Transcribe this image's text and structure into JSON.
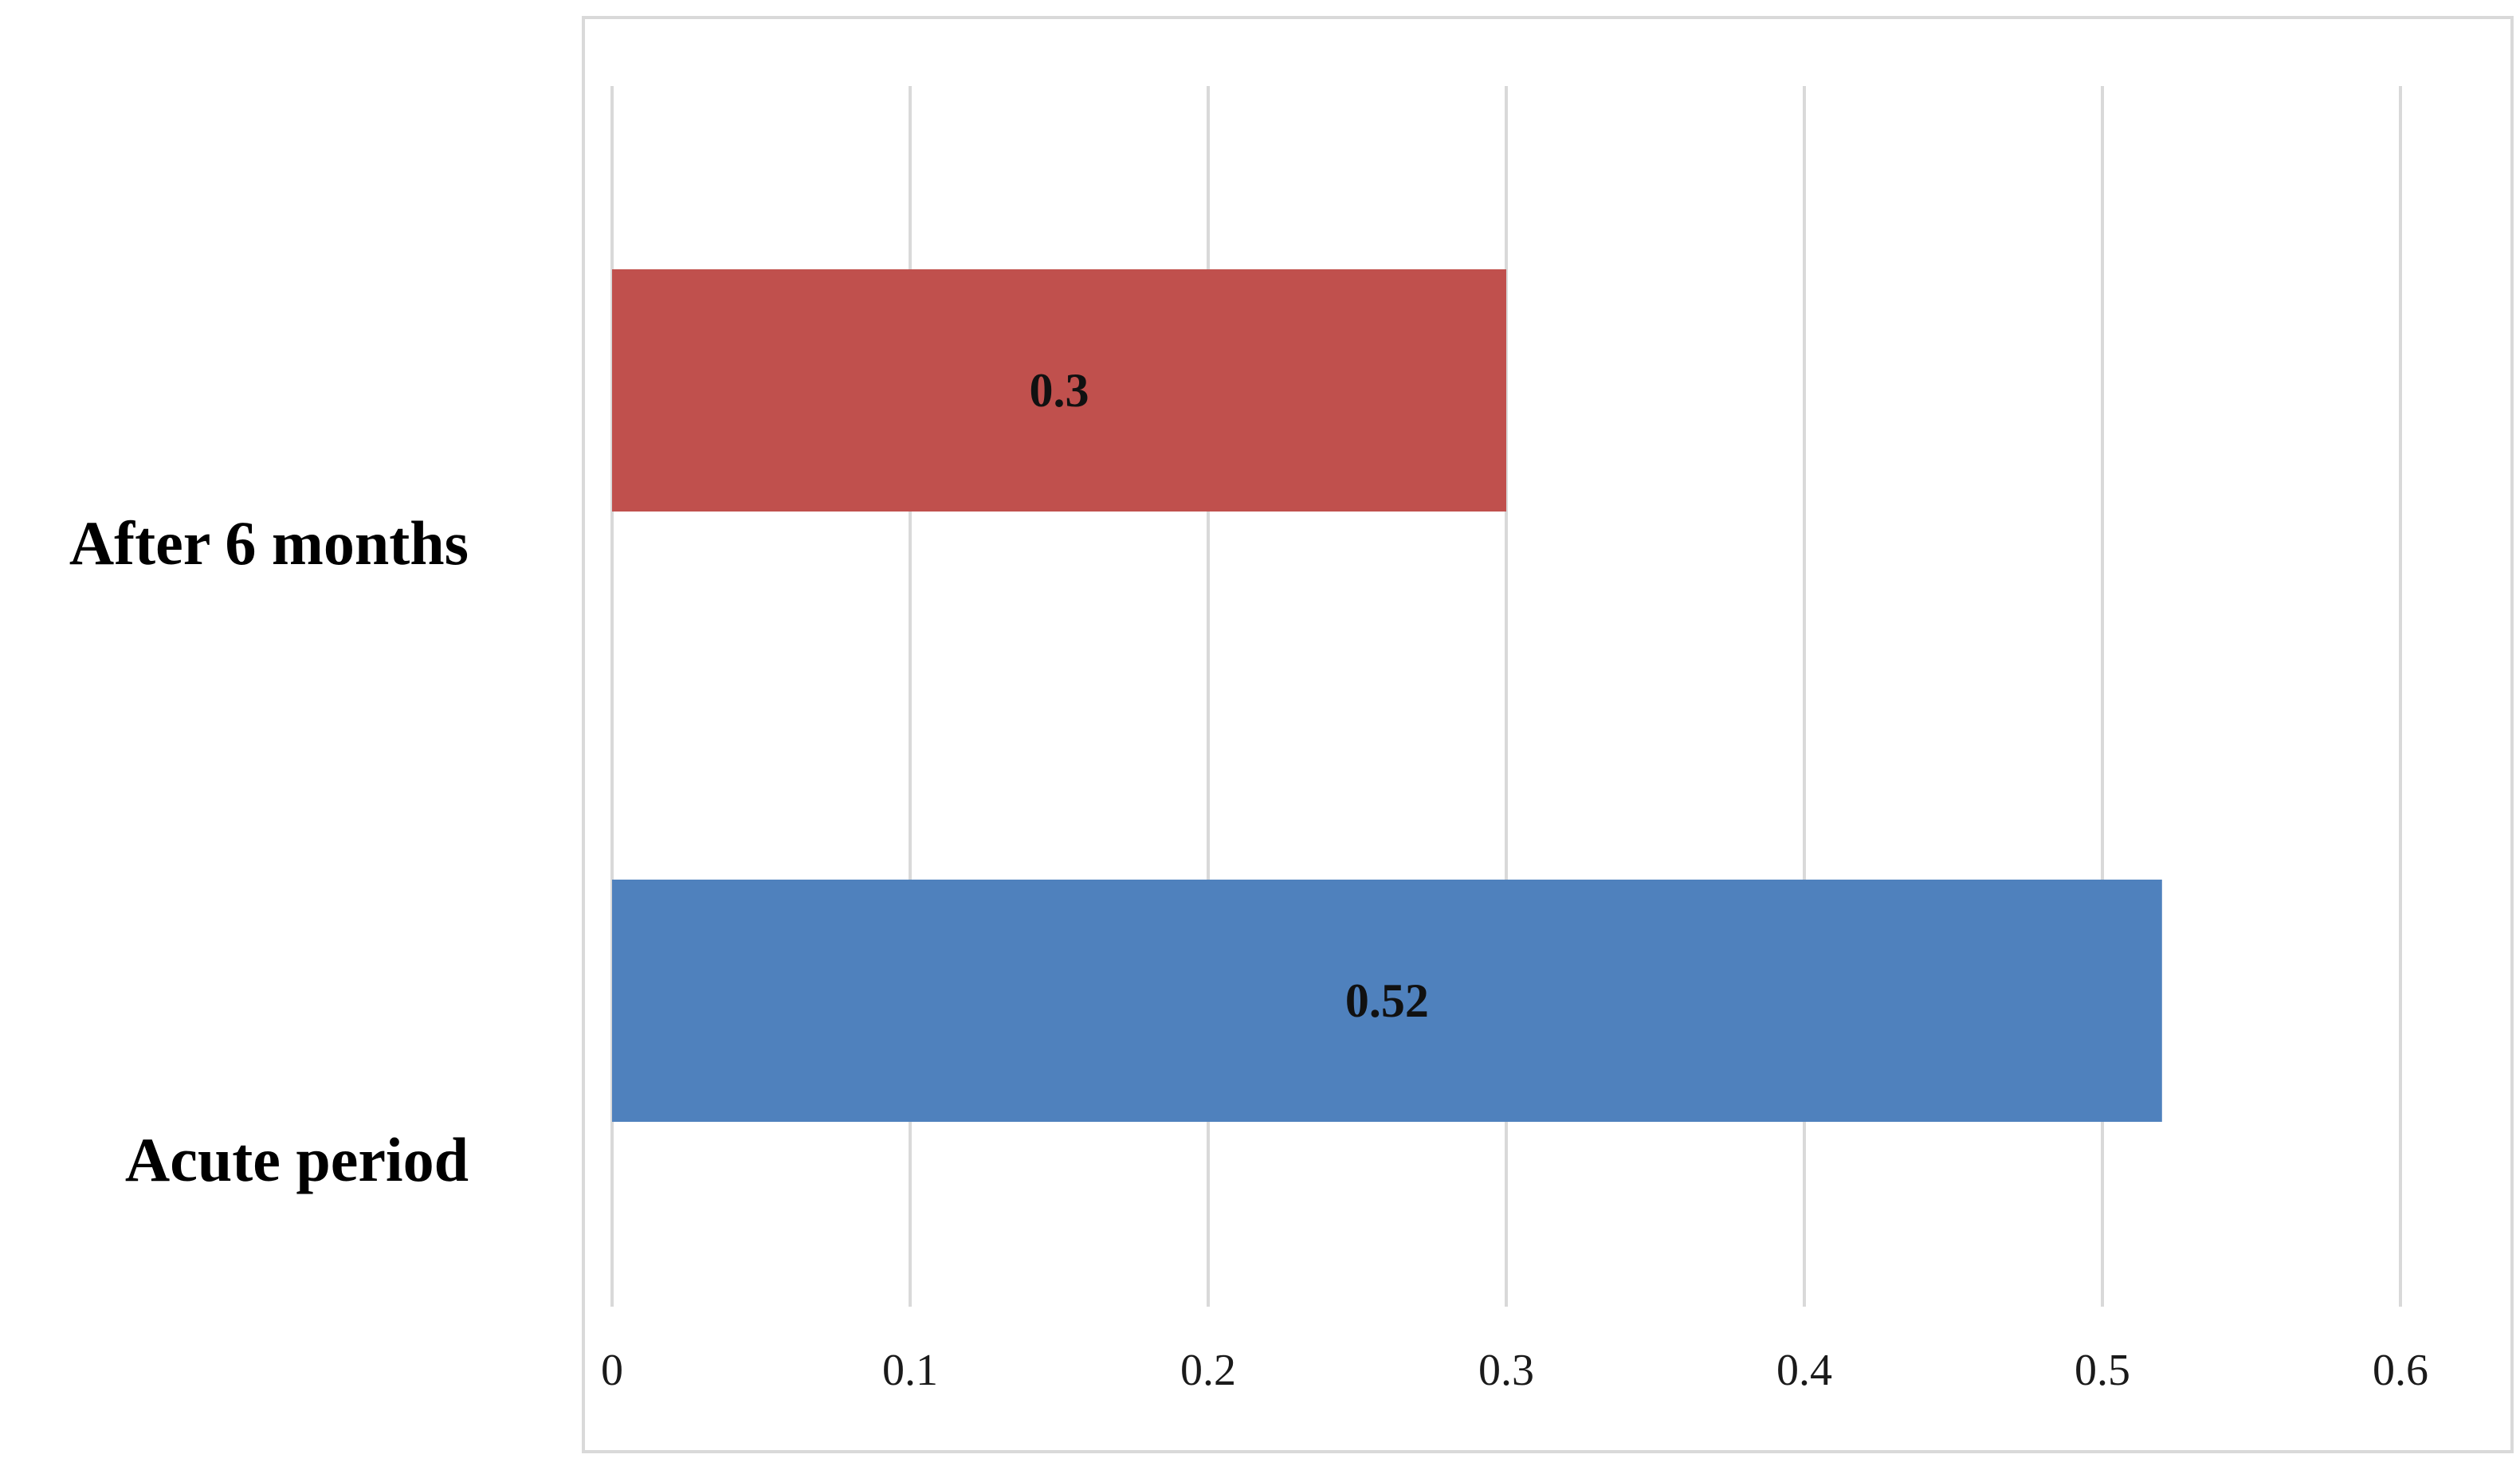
{
  "chart_data": {
    "type": "bar",
    "orientation": "horizontal",
    "categories": [
      "After 6 months",
      "Acute period"
    ],
    "values": [
      0.3,
      0.52
    ],
    "data_labels": [
      "0.3",
      "0.52"
    ],
    "bar_colors": [
      "#c0504d",
      "#4f81bd"
    ],
    "title": "",
    "xlabel": "",
    "ylabel": "",
    "xlim": [
      0,
      0.6
    ],
    "x_ticks": [
      0,
      0.1,
      0.2,
      0.3,
      0.4,
      0.5,
      0.6
    ],
    "x_tick_labels": [
      "0",
      "0.1",
      "0.2",
      "0.3",
      "0.4",
      "0.5",
      "0.6"
    ],
    "grid": "vertical",
    "legend": "none"
  }
}
